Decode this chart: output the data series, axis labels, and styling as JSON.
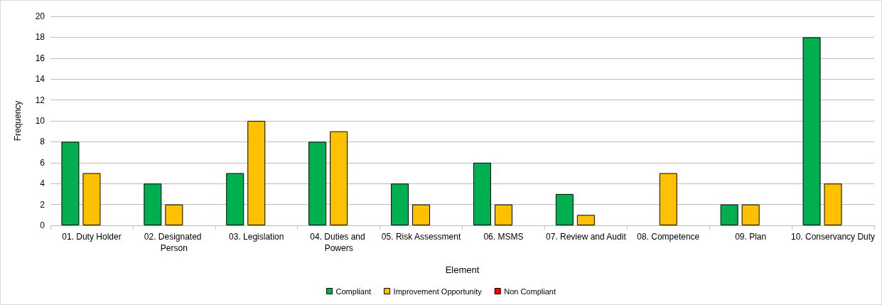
{
  "chart_data": {
    "type": "bar",
    "xlabel": "Element",
    "ylabel": "Frequency",
    "categories": [
      "01. Duty Holder",
      "02. Designated Person",
      "03. Legislation",
      "04. Duties and Powers",
      "05. Risk Assessment",
      "06. MSMS",
      "07. Review and Audit",
      "08. Competence",
      "09. Plan",
      "10. Conservancy Duty"
    ],
    "series": [
      {
        "name": "Compliant",
        "color": "#00b050",
        "values": [
          8,
          4,
          5,
          8,
          4,
          6,
          3,
          0,
          2,
          18
        ]
      },
      {
        "name": "Improvement Opportunity",
        "color": "#ffc000",
        "values": [
          5,
          2,
          10,
          9,
          2,
          2,
          1,
          5,
          2,
          4
        ]
      },
      {
        "name": "Non Compliant",
        "color": "#ff0000",
        "values": [
          0,
          0,
          0,
          0,
          0,
          0,
          0,
          0,
          0,
          0
        ]
      }
    ],
    "ylim": [
      0,
      20
    ],
    "yticks": [
      0,
      2,
      4,
      6,
      8,
      10,
      12,
      14,
      16,
      18,
      20
    ],
    "grid": "y",
    "legend": "bottom"
  }
}
